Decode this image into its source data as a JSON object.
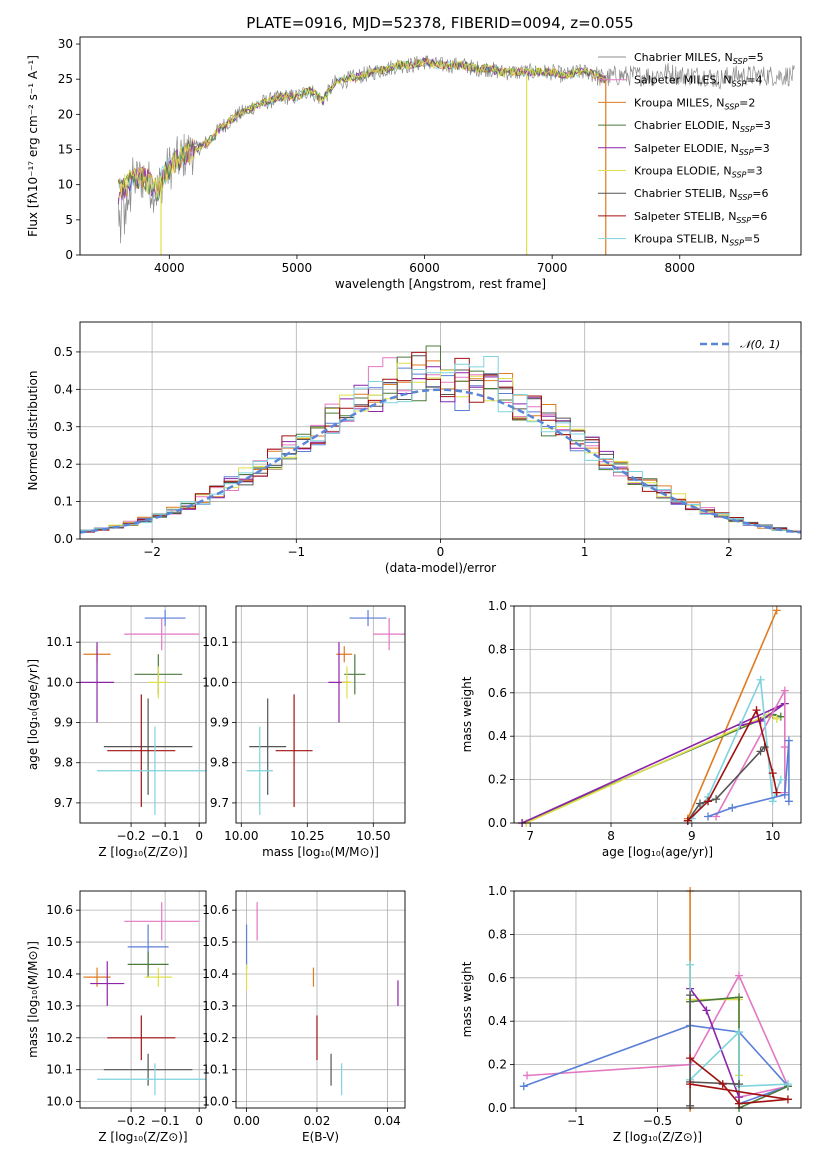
{
  "page": {
    "title": "PLATE=0916, MJD=52378, FIBERID=0094, z=0.055"
  },
  "colors": {
    "cm": "#8c8c8c",
    "sm": "#e377c2",
    "km": "#e07b22",
    "ce": "#4b7a3b",
    "se": "#8e24aa",
    "ke": "#dde04a",
    "cs": "#555555",
    "ss": "#a01010",
    "ks": "#7fd3dd",
    "blue": "#5b7fd6",
    "normal": "#5b86d6",
    "grid": "#b0b0b0"
  },
  "chart_data": [
    {
      "id": "spectrum",
      "type": "line",
      "title": "PLATE=0916, MJD=52378, FIBERID=0094, z=0.055",
      "xlabel": "wavelength [Angstrom, rest frame]",
      "ylabel": "Flux [fλ10⁻¹⁷ erg cm⁻² s⁻¹ A⁻¹]",
      "xlim": [
        3300,
        8950
      ],
      "ylim": [
        0,
        31
      ],
      "xticks": [
        4000,
        5000,
        6000,
        7000,
        8000
      ],
      "yticks": [
        0,
        5,
        10,
        15,
        20,
        25,
        30
      ],
      "grid": false,
      "legend": "top-right",
      "legend_entries": [
        {
          "label": "Chabrier MILES, N",
          "sub": "SSP",
          "n": "=5",
          "color": "cm"
        },
        {
          "label": "Salpeter MILES, N",
          "sub": "SSP",
          "n": "=4",
          "color": "sm"
        },
        {
          "label": "Kroupa MILES, N",
          "sub": "SSP",
          "n": "=2",
          "color": "km"
        },
        {
          "label": "Chabrier ELODIE, N",
          "sub": "SSP",
          "n": "=3",
          "color": "ce"
        },
        {
          "label": "Salpeter ELODIE, N",
          "sub": "SSP",
          "n": "=3",
          "color": "se"
        },
        {
          "label": "Kroupa ELODIE, N",
          "sub": "SSP",
          "n": "=3",
          "color": "ke"
        },
        {
          "label": "Chabrier STELIB, N",
          "sub": "SSP",
          "n": "=6",
          "color": "cs"
        },
        {
          "label": "Salpeter STELIB, N",
          "sub": "SSP",
          "n": "=6",
          "color": "ss"
        },
        {
          "label": "Kroupa STELIB, N",
          "sub": "SSP",
          "n": "=5",
          "color": "ks"
        }
      ],
      "continuum": [
        [
          3600,
          9
        ],
        [
          3700,
          10.5
        ],
        [
          3800,
          11
        ],
        [
          3900,
          9
        ],
        [
          3950,
          11
        ],
        [
          4000,
          12.5
        ],
        [
          4100,
          14
        ],
        [
          4200,
          15
        ],
        [
          4300,
          16
        ],
        [
          4400,
          18
        ],
        [
          4500,
          19.5
        ],
        [
          4600,
          20.5
        ],
        [
          4700,
          21.5
        ],
        [
          4800,
          22
        ],
        [
          4900,
          22.5
        ],
        [
          5000,
          22.5
        ],
        [
          5100,
          23.5
        ],
        [
          5200,
          22
        ],
        [
          5300,
          24.5
        ],
        [
          5400,
          25
        ],
        [
          5500,
          25.5
        ],
        [
          5600,
          26
        ],
        [
          5700,
          26.5
        ],
        [
          5800,
          27
        ],
        [
          5900,
          27
        ],
        [
          6000,
          27.5
        ],
        [
          6100,
          27
        ],
        [
          6200,
          27
        ],
        [
          6300,
          27
        ],
        [
          6400,
          26.5
        ],
        [
          6500,
          26.5
        ],
        [
          6600,
          26
        ],
        [
          6700,
          26
        ],
        [
          6800,
          26
        ],
        [
          6900,
          26
        ],
        [
          7000,
          26
        ],
        [
          7100,
          25.5
        ],
        [
          7200,
          26
        ],
        [
          7300,
          26
        ],
        [
          7400,
          25
        ],
        [
          7500,
          25.5
        ],
        [
          7600,
          25.5
        ],
        [
          7700,
          25.5
        ],
        [
          7800,
          25.5
        ],
        [
          7900,
          26
        ],
        [
          8000,
          25.5
        ],
        [
          8100,
          25.5
        ],
        [
          8200,
          25.5
        ],
        [
          8300,
          25
        ],
        [
          8400,
          25.5
        ],
        [
          8500,
          25.5
        ],
        [
          8600,
          25.5
        ],
        [
          8700,
          25.5
        ],
        [
          8800,
          25.5
        ],
        [
          8900,
          25.5
        ]
      ],
      "features": [
        {
          "x": 3935,
          "y": 0,
          "color": "ke"
        },
        {
          "x": 6800,
          "y": 0,
          "color": "ke"
        },
        {
          "x": 7420,
          "y": 0,
          "color": "km"
        }
      ]
    },
    {
      "id": "histogram",
      "type": "bar",
      "xlabel": "(data-model)/error",
      "ylabel": "Normed distribution",
      "xlim": [
        -2.5,
        2.5
      ],
      "ylim": [
        0,
        0.58
      ],
      "xticks": [
        -2,
        -1,
        0,
        1,
        2
      ],
      "yticks": [
        0.0,
        0.1,
        0.2,
        0.3,
        0.4,
        0.5
      ],
      "grid": true,
      "legend": "top-right",
      "normal_label": "𝒩(0, 1)",
      "bin_width": 0.1
    },
    {
      "id": "age_vs_Z",
      "type": "scatter",
      "xlabel": "Z [log₁₀(Z/Z⊙)]",
      "ylabel": "age  [log₁₀(age/yr)]",
      "xlim": [
        -0.35,
        0.02
      ],
      "ylim": [
        9.65,
        10.19
      ],
      "xticks": [
        -0.2,
        -0.1,
        0.0
      ],
      "yticks": [
        9.7,
        9.8,
        9.9,
        10.0,
        10.1
      ],
      "grid": true,
      "points": [
        {
          "x": -0.1,
          "y": 10.16,
          "xerr": 0.06,
          "yerr": 0.02,
          "color": "blue"
        },
        {
          "x": -0.11,
          "y": 10.12,
          "xerr": 0.11,
          "yerr": 0.04,
          "color": "sm"
        },
        {
          "x": -0.3,
          "y": 10.07,
          "xerr": 0.04,
          "yerr": 0.02,
          "color": "km"
        },
        {
          "x": -0.12,
          "y": 10.02,
          "xerr": 0.07,
          "yerr": 0.05,
          "color": "ce"
        },
        {
          "x": -0.3,
          "y": 10.0,
          "xerr": 0.05,
          "yerr": 0.1,
          "color": "se"
        },
        {
          "x": -0.12,
          "y": 10.0,
          "xerr": 0.03,
          "yerr": 0.04,
          "color": "ke"
        },
        {
          "x": -0.15,
          "y": 9.84,
          "xerr": 0.13,
          "yerr": 0.12,
          "color": "cs"
        },
        {
          "x": -0.17,
          "y": 9.83,
          "xerr": 0.1,
          "yerr": 0.14,
          "color": "ss"
        },
        {
          "x": -0.13,
          "y": 9.78,
          "xerr": 0.17,
          "yerr": 0.11,
          "color": "ks"
        }
      ]
    },
    {
      "id": "age_vs_mass",
      "type": "scatter",
      "xlabel": "mass [log₁₀(M/M⊙)]",
      "ylabel": "",
      "xlim": [
        9.98,
        10.62
      ],
      "ylim": [
        9.65,
        10.19
      ],
      "xticks": [
        10.0,
        10.25,
        10.5
      ],
      "tick_labels": [
        "10.00",
        "10.25",
        "10.50"
      ],
      "yticks": [
        9.7,
        9.8,
        9.9,
        10.0,
        10.1
      ],
      "grid": true,
      "points": [
        {
          "x": 10.48,
          "y": 10.16,
          "xerr": 0.07,
          "yerr": 0.02,
          "color": "blue"
        },
        {
          "x": 10.56,
          "y": 10.12,
          "xerr": 0.06,
          "yerr": 0.04,
          "color": "sm"
        },
        {
          "x": 10.39,
          "y": 10.07,
          "xerr": 0.03,
          "yerr": 0.02,
          "color": "km"
        },
        {
          "x": 10.43,
          "y": 10.02,
          "xerr": 0.04,
          "yerr": 0.05,
          "color": "ce"
        },
        {
          "x": 10.37,
          "y": 10.0,
          "xerr": 0.04,
          "yerr": 0.1,
          "color": "se"
        },
        {
          "x": 10.4,
          "y": 10.0,
          "xerr": 0.02,
          "yerr": 0.04,
          "color": "ke"
        },
        {
          "x": 10.1,
          "y": 9.84,
          "xerr": 0.07,
          "yerr": 0.12,
          "color": "cs"
        },
        {
          "x": 10.2,
          "y": 9.83,
          "xerr": 0.07,
          "yerr": 0.14,
          "color": "ss"
        },
        {
          "x": 10.07,
          "y": 9.78,
          "xerr": 0.05,
          "yerr": 0.11,
          "color": "ks"
        }
      ]
    },
    {
      "id": "weight_vs_age",
      "type": "line",
      "xlabel": "age  [log₁₀(age/yr)]",
      "ylabel": "mass weight",
      "xlim": [
        6.8,
        10.35
      ],
      "ylim": [
        0,
        1
      ],
      "xticks": [
        7,
        8,
        9,
        10
      ],
      "yticks": [
        0.0,
        0.2,
        0.4,
        0.6,
        0.8,
        1.0
      ],
      "grid": true,
      "series": [
        {
          "color": "km",
          "points": [
            [
              8.95,
              0.02
            ],
            [
              10.05,
              0.98
            ]
          ]
        },
        {
          "color": "ce",
          "points": [
            [
              6.9,
              0.0
            ],
            [
              10.0,
              0.5
            ],
            [
              10.1,
              0.49
            ]
          ]
        },
        {
          "color": "ke",
          "points": [
            [
              6.95,
              0.0
            ],
            [
              9.95,
              0.5
            ],
            [
              10.05,
              0.48
            ]
          ]
        },
        {
          "color": "se",
          "points": [
            [
              6.9,
              0.0
            ],
            [
              10.15,
              0.55
            ],
            [
              9.85,
              0.47
            ],
            [
              9.6,
              0.45
            ]
          ]
        },
        {
          "color": "sm",
          "points": [
            [
              9.3,
              0.03
            ],
            [
              10.15,
              0.61
            ],
            [
              10.15,
              0.35
            ],
            [
              10.15,
              0.14
            ]
          ]
        },
        {
          "color": "ks",
          "points": [
            [
              9.0,
              0.02
            ],
            [
              9.2,
              0.12
            ],
            [
              9.85,
              0.66
            ],
            [
              10.0,
              0.1
            ],
            [
              10.1,
              0.2
            ]
          ]
        },
        {
          "color": "cs",
          "points": [
            [
              8.95,
              0.01
            ],
            [
              9.1,
              0.09
            ],
            [
              9.3,
              0.11
            ],
            [
              9.9,
              0.35
            ],
            [
              9.85,
              0.33
            ]
          ]
        },
        {
          "color": "ss",
          "points": [
            [
              8.95,
              0.01
            ],
            [
              9.2,
              0.1
            ],
            [
              9.8,
              0.52
            ],
            [
              10.0,
              0.23
            ],
            [
              10.05,
              0.14
            ]
          ]
        },
        {
          "color": "blue",
          "points": [
            [
              9.2,
              0.03
            ],
            [
              9.5,
              0.07
            ],
            [
              10.15,
              0.13
            ],
            [
              10.2,
              0.38
            ],
            [
              10.2,
              0.1
            ]
          ]
        }
      ]
    },
    {
      "id": "mass_vs_Z",
      "type": "scatter",
      "xlabel": "Z [log₁₀(Z/Z⊙)]",
      "ylabel": "mass [log₁₀(M/M⊙)]",
      "xlim": [
        -0.35,
        0.02
      ],
      "ylim": [
        9.98,
        10.66
      ],
      "xticks": [
        -0.2,
        -0.1,
        0.0
      ],
      "yticks": [
        10.0,
        10.1,
        10.2,
        10.3,
        10.4,
        10.5,
        10.6
      ],
      "grid": true,
      "points": [
        {
          "x": -0.11,
          "y": 10.565,
          "xerr": 0.11,
          "yerr": 0.06,
          "color": "sm"
        },
        {
          "x": -0.15,
          "y": 10.485,
          "xerr": 0.06,
          "yerr": 0.07,
          "color": "blue"
        },
        {
          "x": -0.15,
          "y": 10.43,
          "xerr": 0.06,
          "yerr": 0.04,
          "color": "ce"
        },
        {
          "x": -0.3,
          "y": 10.39,
          "xerr": 0.04,
          "yerr": 0.03,
          "color": "km"
        },
        {
          "x": -0.12,
          "y": 10.39,
          "xerr": 0.04,
          "yerr": 0.03,
          "color": "ke"
        },
        {
          "x": -0.27,
          "y": 10.37,
          "xerr": 0.05,
          "yerr": 0.07,
          "color": "se"
        },
        {
          "x": -0.17,
          "y": 10.2,
          "xerr": 0.1,
          "yerr": 0.07,
          "color": "ss"
        },
        {
          "x": -0.15,
          "y": 10.1,
          "xerr": 0.13,
          "yerr": 0.05,
          "color": "cs"
        },
        {
          "x": -0.13,
          "y": 10.07,
          "xerr": 0.17,
          "yerr": 0.05,
          "color": "ks"
        }
      ]
    },
    {
      "id": "mass_vs_ebv",
      "type": "scatter",
      "xlabel": "E(B-V)",
      "ylabel": "",
      "xlim": [
        -0.003,
        0.045
      ],
      "ylim": [
        9.98,
        10.66
      ],
      "xticks": [
        0.0,
        0.02,
        0.04
      ],
      "tick_labels": [
        "0.00",
        "0.02",
        "0.04"
      ],
      "yticks": [
        10.0,
        10.1,
        10.2,
        10.3,
        10.4,
        10.5,
        10.6
      ],
      "grid": true,
      "points": [
        {
          "x": 0.003,
          "y": 10.565,
          "yerr": 0.06,
          "color": "sm"
        },
        {
          "x": 0.0,
          "y": 10.485,
          "yerr": 0.07,
          "color": "blue"
        },
        {
          "x": 0.0,
          "y": 10.39,
          "yerr": 0.04,
          "color": "ke"
        },
        {
          "x": 0.019,
          "y": 10.39,
          "yerr": 0.03,
          "color": "km"
        },
        {
          "x": 0.043,
          "y": 10.34,
          "yerr": 0.04,
          "color": "se"
        },
        {
          "x": 0.02,
          "y": 10.2,
          "yerr": 0.07,
          "color": "ss"
        },
        {
          "x": 0.024,
          "y": 10.1,
          "yerr": 0.05,
          "color": "cs"
        },
        {
          "x": 0.027,
          "y": 10.07,
          "yerr": 0.05,
          "color": "ks"
        }
      ]
    },
    {
      "id": "weight_vs_Z",
      "type": "line",
      "xlabel": "Z [log₁₀(Z/Z⊙)]",
      "ylabel": "mass weight",
      "xlim": [
        -1.38,
        0.38
      ],
      "ylim": [
        0,
        1
      ],
      "xticks": [
        -1.0,
        -0.5,
        0.0
      ],
      "yticks": [
        0.0,
        0.2,
        0.4,
        0.6,
        0.8,
        1.0
      ],
      "grid": true,
      "series": [
        {
          "color": "km",
          "points": [
            [
              -0.3,
              0.0
            ],
            [
              -0.3,
              1.0
            ]
          ]
        },
        {
          "color": "sm",
          "points": [
            [
              -1.3,
              0.15
            ],
            [
              -0.3,
              0.2
            ],
            [
              0.0,
              0.61
            ],
            [
              0.3,
              0.1
            ],
            [
              0.0,
              0.05
            ]
          ]
        },
        {
          "color": "blue",
          "points": [
            [
              -1.32,
              0.1
            ],
            [
              -0.3,
              0.38
            ],
            [
              0.0,
              0.35
            ],
            [
              0.3,
              0.1
            ],
            [
              0.0,
              0.02
            ]
          ]
        },
        {
          "color": "ke",
          "points": [
            [
              -0.3,
              0.5
            ],
            [
              0.0,
              0.5
            ],
            [
              0.0,
              0.15
            ]
          ]
        },
        {
          "color": "ce",
          "points": [
            [
              -0.3,
              0.49
            ],
            [
              0.0,
              0.51
            ],
            [
              0.0,
              0.0
            ],
            [
              0.3,
              0.1
            ]
          ]
        },
        {
          "color": "se",
          "points": [
            [
              -0.3,
              0.55
            ],
            [
              -0.2,
              0.45
            ],
            [
              0.0,
              0.05
            ]
          ]
        },
        {
          "color": "ks",
          "points": [
            [
              -0.3,
              0.66
            ],
            [
              -0.3,
              0.13
            ],
            [
              0.0,
              0.35
            ],
            [
              0.0,
              0.1
            ],
            [
              0.3,
              0.11
            ]
          ]
        },
        {
          "color": "cs",
          "points": [
            [
              -0.3,
              0.01
            ],
            [
              -0.3,
              0.52
            ],
            [
              -0.3,
              0.12
            ],
            [
              0.0,
              0.11
            ]
          ]
        },
        {
          "color": "ss",
          "points": [
            [
              -0.3,
              0.23
            ],
            [
              -0.1,
              0.11
            ],
            [
              0.0,
              0.02
            ],
            [
              0.3,
              0.04
            ],
            [
              -0.3,
              0.11
            ]
          ]
        }
      ]
    }
  ]
}
